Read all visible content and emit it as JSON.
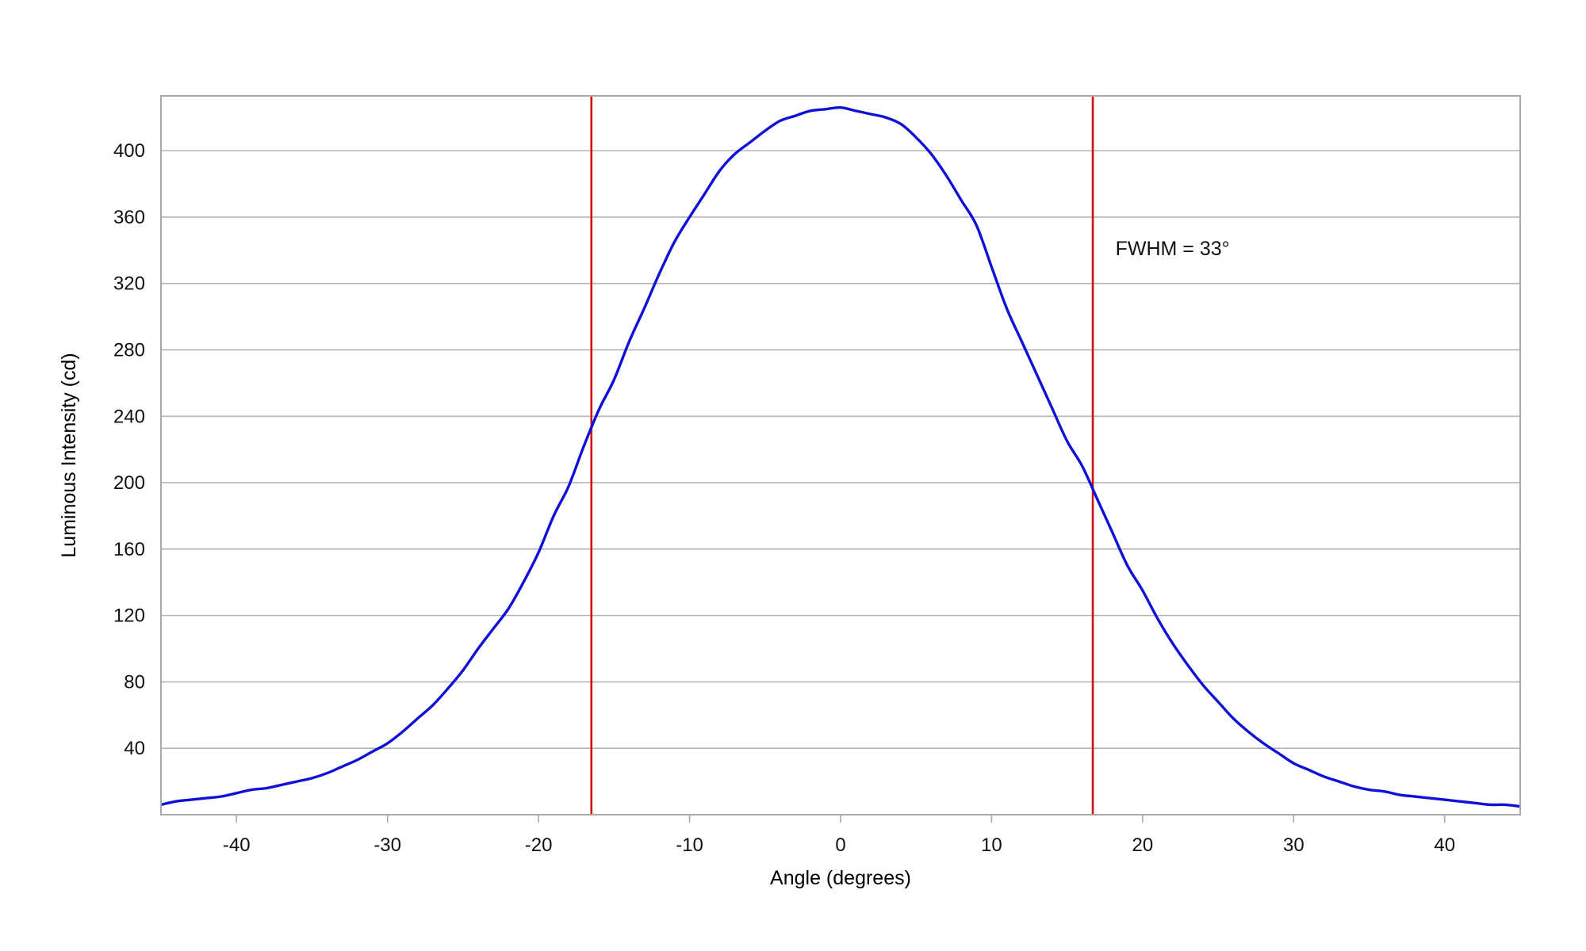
{
  "chart_data": {
    "type": "line",
    "title": "",
    "xlabel": "Angle (degrees)",
    "ylabel": "Luminous Intensity (cd)",
    "xlim": [
      -45,
      45
    ],
    "ylim": [
      0,
      433
    ],
    "xticks": [
      -40,
      -30,
      -20,
      -10,
      0,
      10,
      20,
      30,
      40
    ],
    "yticks": [
      40,
      80,
      120,
      160,
      200,
      240,
      280,
      320,
      360,
      400
    ],
    "grid": "horizontal",
    "legend": "none",
    "series": [
      {
        "color": "#1010d8",
        "x": [
          -45,
          -44,
          -43,
          -42,
          -41,
          -40,
          -39,
          -38,
          -37,
          -36,
          -35,
          -34,
          -33,
          -32,
          -31,
          -30,
          -29,
          -28,
          -27,
          -26,
          -25,
          -24,
          -23,
          -22,
          -21,
          -20,
          -19,
          -18,
          -17,
          -16,
          -15,
          -14,
          -13,
          -12,
          -11,
          -10,
          -9,
          -8,
          -7,
          -6,
          -5,
          -4,
          -3,
          -2,
          -1,
          0,
          1,
          2,
          3,
          4,
          5,
          6,
          7,
          8,
          9,
          10,
          11,
          12,
          13,
          14,
          15,
          16,
          17,
          18,
          19,
          20,
          21,
          22,
          23,
          24,
          25,
          26,
          27,
          28,
          29,
          30,
          31,
          32,
          33,
          34,
          35,
          36,
          37,
          38,
          39,
          40,
          41,
          42,
          43,
          44,
          45
        ],
        "y": [
          6,
          8,
          9,
          10,
          11,
          13,
          15,
          16,
          18,
          20,
          22,
          25,
          29,
          33,
          38,
          43,
          50,
          58,
          66,
          76,
          87,
          100,
          112,
          124,
          140,
          158,
          180,
          198,
          222,
          244,
          262,
          285,
          305,
          326,
          345,
          360,
          374,
          388,
          398,
          405,
          412,
          418,
          421,
          424,
          425,
          426,
          424,
          422,
          420,
          416,
          408,
          398,
          385,
          370,
          355,
          330,
          305,
          285,
          265,
          245,
          225,
          210,
          190,
          170,
          150,
          135,
          118,
          103,
          90,
          78,
          68,
          58,
          50,
          43,
          37,
          31,
          27,
          23,
          20,
          17,
          15,
          14,
          12,
          11,
          10,
          9,
          8,
          7,
          6,
          6,
          5
        ]
      }
    ],
    "vlines": [
      {
        "x": -16.5,
        "color": "#d01010"
      },
      {
        "x": 16.7,
        "color": "#d01010"
      }
    ],
    "annotation": {
      "text": "FWHM = 33°",
      "x": 18.2,
      "y": 337
    }
  }
}
